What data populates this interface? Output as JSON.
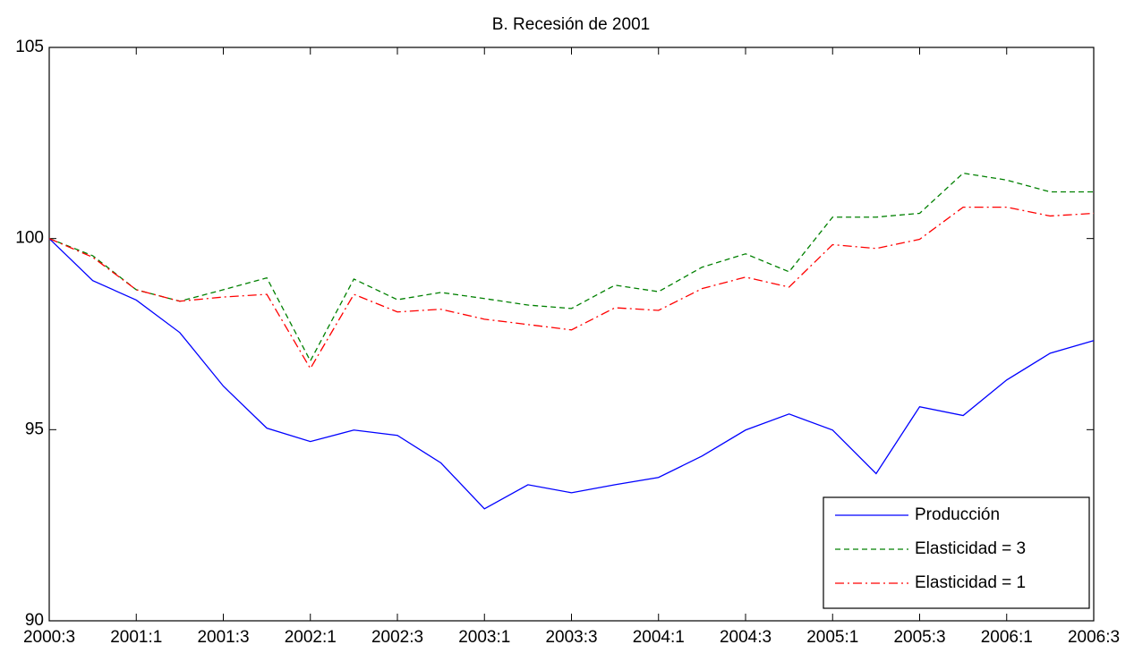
{
  "chart_data": {
    "type": "line",
    "title": "B. Recesión de 2001",
    "categories": [
      "2000:3",
      null,
      "2001:1",
      null,
      "2001:3",
      null,
      "2002:1",
      null,
      "2002:3",
      null,
      "2003:1",
      null,
      "2003:3",
      null,
      "2004:1",
      null,
      "2004:3",
      null,
      "2005:1",
      null,
      "2005:3",
      null,
      "2006:1",
      null,
      "2006:3"
    ],
    "series": [
      {
        "name": "Producción",
        "color": "#0000ff",
        "dash": "solid",
        "values": [
          100,
          98.9,
          98.39,
          97.54,
          96.14,
          95.04,
          94.69,
          94.99,
          94.85,
          94.13,
          92.93,
          93.56,
          93.35,
          93.56,
          93.75,
          94.31,
          94.99,
          95.41,
          94.99,
          93.85,
          95.6,
          95.37,
          96.3,
          97.0,
          97.33
        ]
      },
      {
        "name": "Elasticidad = 3",
        "color": "#008000",
        "dash": "dashed",
        "values": [
          100,
          99.55,
          98.66,
          98.36,
          98.66,
          98.97,
          96.8,
          98.94,
          98.4,
          98.59,
          98.43,
          98.26,
          98.17,
          98.78,
          98.61,
          99.25,
          99.6,
          99.13,
          100.56,
          100.56,
          100.66,
          101.71,
          101.53,
          101.22,
          101.22
        ]
      },
      {
        "name": "Elasticidad = 1",
        "color": "#ff0000",
        "dash": "dashdot",
        "values": [
          100,
          99.51,
          98.66,
          98.36,
          98.47,
          98.54,
          96.6,
          98.54,
          98.08,
          98.15,
          97.89,
          97.75,
          97.61,
          98.19,
          98.12,
          98.69,
          98.99,
          98.73,
          99.84,
          99.74,
          99.98,
          100.82,
          100.82,
          100.59,
          100.66
        ]
      }
    ],
    "ylim": [
      90,
      105
    ],
    "yticks": [
      90,
      95,
      100,
      105
    ],
    "grid": false,
    "legend": "lower right"
  }
}
